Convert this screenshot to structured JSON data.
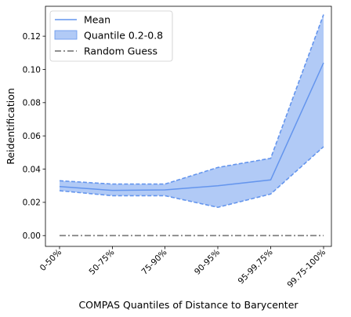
{
  "chart_data": {
    "type": "line",
    "xlabel": "COMPAS Quantiles of Distance to Barycenter",
    "ylabel": "Reidentification",
    "categories": [
      "0-50%",
      "50-75%",
      "75-90%",
      "90-95%",
      "95-99.75%",
      "99.75-100%"
    ],
    "ylim": [
      -0.0065,
      0.138
    ],
    "yticks": [
      0.0,
      0.02,
      0.04,
      0.06,
      0.08,
      0.1,
      0.12
    ],
    "yticklabels": [
      "0.00",
      "0.02",
      "0.04",
      "0.06",
      "0.08",
      "0.10",
      "0.12"
    ],
    "series": [
      {
        "name": "Mean",
        "kind": "line",
        "color": "#6495ED",
        "values": [
          0.0295,
          0.0272,
          0.0275,
          0.03,
          0.0335,
          0.104
        ]
      },
      {
        "name": "Quantile 0.2-0.8",
        "kind": "band",
        "color": "#6495ED",
        "lower": [
          0.027,
          0.024,
          0.024,
          0.017,
          0.025,
          0.0535
        ],
        "upper": [
          0.033,
          0.031,
          0.031,
          0.041,
          0.0465,
          0.133
        ]
      },
      {
        "name": "Random Guess",
        "kind": "line",
        "color": "#808080",
        "values": [
          0.0,
          0.0,
          0.0,
          0.0,
          0.0,
          0.0
        ]
      }
    ],
    "legend_position": "top-left",
    "grid": false
  }
}
